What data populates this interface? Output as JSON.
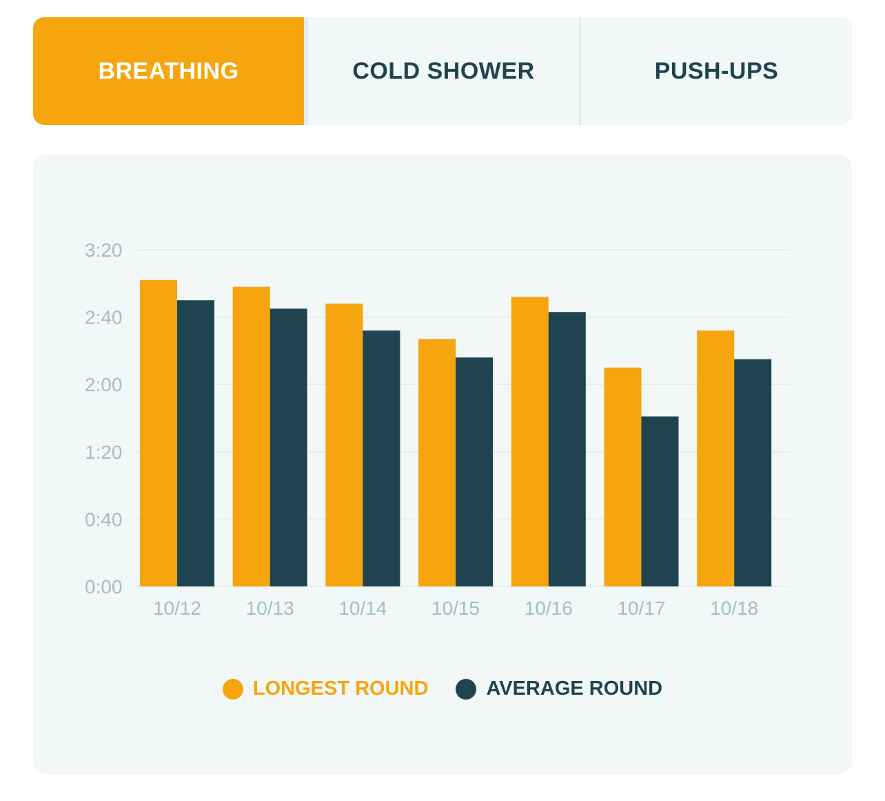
{
  "tabs": [
    {
      "label": "BREATHING",
      "active": true
    },
    {
      "label": "COLD SHOWER",
      "active": false
    },
    {
      "label": "PUSH-UPS",
      "active": false
    }
  ],
  "colors": {
    "longest": "#f6a50e",
    "average": "#1f4450",
    "grid": "#e3ebec",
    "tick": "#a4bfc0"
  },
  "chart_data": {
    "type": "bar",
    "categories": [
      "10/12",
      "10/13",
      "10/14",
      "10/15",
      "10/16",
      "10/17",
      "10/18"
    ],
    "series": [
      {
        "name": "LONGEST ROUND",
        "values": [
          182,
          178,
          168,
          147,
          172,
          130,
          152
        ]
      },
      {
        "name": "AVERAGE ROUND",
        "values": [
          170,
          165,
          152,
          136,
          163,
          101,
          135
        ]
      }
    ],
    "y_ticks": [
      "0:00",
      "0:40",
      "1:20",
      "2:00",
      "2:40",
      "3:20"
    ],
    "ylim": [
      0,
      200
    ],
    "y_unit": "seconds",
    "grid": true,
    "legend_position": "bottom"
  }
}
